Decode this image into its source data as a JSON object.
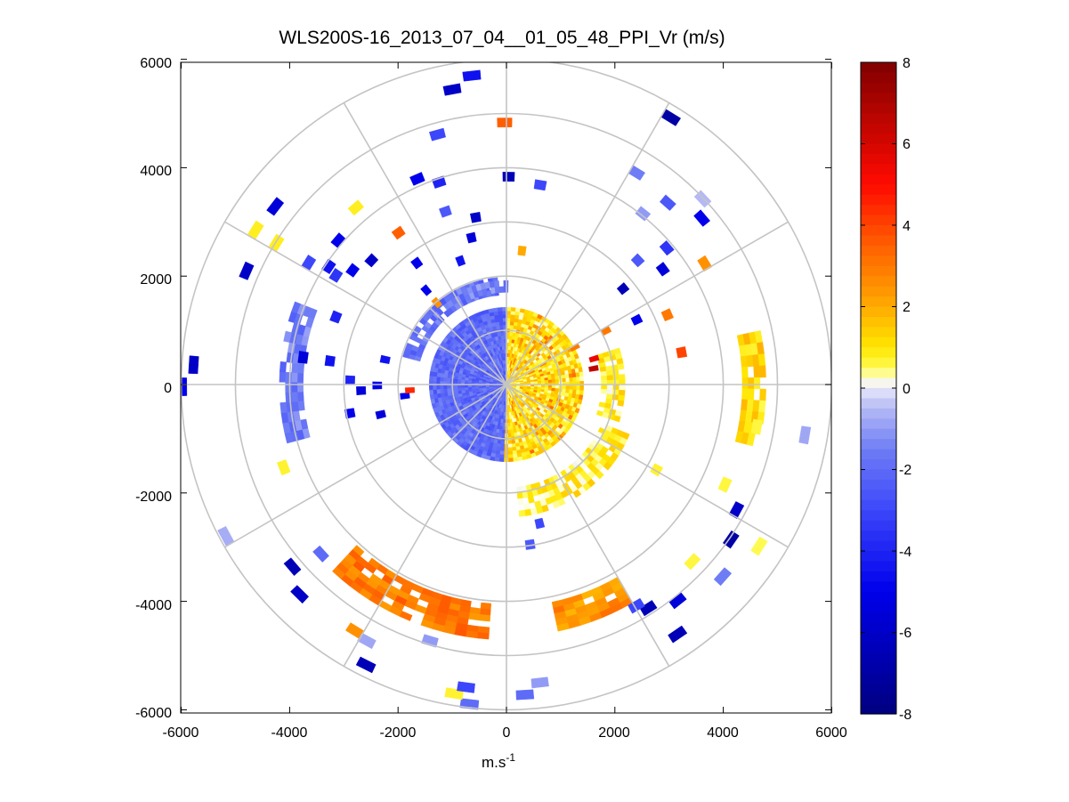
{
  "chart_data": {
    "type": "polar-ppi-scan",
    "title": "WLS200S-16_2013_07_04__01_05_48_PPI_Vr (m/s)",
    "xlabel": "m.s",
    "xlabel_superscript": "-1",
    "ylabel": "",
    "xlim": [
      -6000,
      6000
    ],
    "ylim": [
      -6000,
      6000
    ],
    "x_ticks": [
      "-6000",
      "-4000",
      "-2000",
      "0",
      "2000",
      "4000",
      "6000"
    ],
    "y_ticks": [
      "6000",
      "4000",
      "2000",
      "0",
      "-2000",
      "-4000",
      "-6000"
    ],
    "x_tick_values": [
      -6000,
      -4000,
      -2000,
      0,
      2000,
      4000,
      6000
    ],
    "y_tick_values": [
      6000,
      4000,
      2000,
      0,
      -2000,
      -4000,
      -6000
    ],
    "polar_grid": {
      "ring_radii_m": [
        1000,
        2000,
        3000,
        4000,
        5000,
        6000
      ],
      "spoke_angles_deg": [
        0,
        30,
        60,
        90,
        120,
        150,
        180,
        210,
        240,
        270,
        300,
        330
      ],
      "inner_spokes_deg": [
        45,
        135,
        225,
        315
      ]
    },
    "colorbar": {
      "label": "Vr (m/s)",
      "range": [
        -8,
        8
      ],
      "ticks": [
        "8",
        "6",
        "4",
        "2",
        "0",
        "-2",
        "-4",
        "-6",
        "-8"
      ],
      "tick_values": [
        8,
        6,
        4,
        2,
        0,
        -2,
        -4,
        -6,
        -8
      ],
      "colormap": "blue-white-red (dark navy at -8, white near 0, yellow/orange/red to dark red at 8)"
    },
    "near_range_disk": {
      "radius_m": 1400,
      "west_half_velocity_ms": -2,
      "east_half_velocity_ms": 1
    },
    "regions": [
      {
        "name": "south arc",
        "range_m": [
          4050,
          4650
        ],
        "azimuth_deg": [
          184,
          222
        ],
        "velocity_ms": 3.0
      },
      {
        "name": "south-southeast arc",
        "range_m": [
          4100,
          4550
        ],
        "azimuth_deg": [
          150,
          166
        ],
        "velocity_ms": 2.5
      },
      {
        "name": "east arc",
        "range_m": [
          4350,
          4750
        ],
        "azimuth_deg": [
          78,
          102
        ],
        "velocity_ms": 1.2
      },
      {
        "name": "west arc",
        "range_m": [
          3750,
          4150
        ],
        "azimuth_deg": [
          255,
          290
        ],
        "velocity_ms": -1.6
      },
      {
        "name": "southeast ring",
        "range_m": [
          1900,
          2350
        ],
        "azimuth_deg": [
          112,
          172
        ],
        "velocity_ms": 0.8
      },
      {
        "name": "east ring",
        "range_m": [
          1750,
          2150
        ],
        "azimuth_deg": [
          72,
          108
        ],
        "velocity_ms": 0.8
      },
      {
        "name": "northwest ring",
        "range_m": [
          1650,
          1950
        ],
        "azimuth_deg": [
          285,
          355
        ],
        "velocity_ms": -1.8
      },
      {
        "name": "north ring",
        "range_m": [
          1700,
          1900
        ],
        "azimuth_deg": [
          335,
          360
        ],
        "velocity_ms": -1.4
      }
    ],
    "sparse_scatter_ms": [
      {
        "range_m": 5650,
        "azimuth_deg": 352,
        "velocity_ms": -4.5
      },
      {
        "range_m": 5450,
        "azimuth_deg": 348,
        "velocity_ms": -6.0
      },
      {
        "range_m": 4700,
        "azimuth_deg": 343,
        "velocity_ms": -3.0
      },
      {
        "range_m": 4750,
        "azimuth_deg": 358,
        "velocity_ms": 3.5
      },
      {
        "range_m": 4050,
        "azimuth_deg": 335,
        "velocity_ms": -5.0
      },
      {
        "range_m": 3850,
        "azimuth_deg": 340,
        "velocity_ms": -4.0
      },
      {
        "range_m": 3750,
        "azimuth_deg": 359,
        "velocity_ms": -6.5
      },
      {
        "range_m": 3650,
        "azimuth_deg": 8,
        "velocity_ms": -3.0
      },
      {
        "range_m": 3300,
        "azimuth_deg": 339,
        "velocity_ms": -2.5
      },
      {
        "range_m": 3050,
        "azimuth_deg": 348,
        "velocity_ms": -6.0
      },
      {
        "range_m": 2700,
        "azimuth_deg": 345,
        "velocity_ms": -5.5
      },
      {
        "range_m": 2350,
        "azimuth_deg": 338,
        "velocity_ms": -4.5
      },
      {
        "range_m": 2400,
        "azimuth_deg": 5,
        "velocity_ms": 2.0
      },
      {
        "range_m": 5700,
        "azimuth_deg": 30,
        "velocity_ms": -7.0
      },
      {
        "range_m": 4500,
        "azimuth_deg": 30,
        "velocity_ms": -1.5
      },
      {
        "range_m": 4400,
        "azimuth_deg": 40,
        "velocity_ms": -2.5
      },
      {
        "range_m": 4650,
        "azimuth_deg": 48,
        "velocity_ms": -5.0
      },
      {
        "range_m": 4200,
        "azimuth_deg": 57,
        "velocity_ms": 2.5
      },
      {
        "range_m": 3950,
        "azimuth_deg": 37,
        "velocity_ms": -1.0
      },
      {
        "range_m": 3800,
        "azimuth_deg": 48,
        "velocity_ms": -3.5
      },
      {
        "range_m": 3250,
        "azimuth_deg": 45,
        "velocity_ms": -2.5
      },
      {
        "range_m": 3500,
        "azimuth_deg": 52,
        "velocity_ms": -5.5
      },
      {
        "range_m": 3150,
        "azimuth_deg": 65,
        "velocity_ms": 3.0
      },
      {
        "range_m": 2600,
        "azimuth_deg": 62,
        "velocity_ms": -5.0
      },
      {
        "range_m": 3200,
        "azimuth_deg": 78,
        "velocity_ms": 4.0
      },
      {
        "range_m": 4900,
        "azimuth_deg": 45,
        "velocity_ms": -0.5
      },
      {
        "range_m": 5500,
        "azimuth_deg": 98,
        "velocity_ms": -0.8
      },
      {
        "range_m": 4600,
        "azimuth_deg": 98,
        "velocity_ms": 0.6
      },
      {
        "range_m": 4350,
        "azimuth_deg": 113,
        "velocity_ms": 0.6
      },
      {
        "range_m": 4750,
        "azimuth_deg": 117,
        "velocity_ms": -6.0
      },
      {
        "range_m": 4950,
        "azimuth_deg": 123,
        "velocity_ms": -7.0
      },
      {
        "range_m": 5450,
        "azimuth_deg": 121,
        "velocity_ms": 0.5
      },
      {
        "range_m": 5250,
        "azimuth_deg": 130,
        "velocity_ms": -1.5
      },
      {
        "range_m": 4650,
        "azimuth_deg": 132,
        "velocity_ms": 0.6
      },
      {
        "range_m": 5000,
        "azimuth_deg": 140,
        "velocity_ms": -5.5
      },
      {
        "range_m": 4800,
        "azimuth_deg": 146,
        "velocity_ms": -6.5
      },
      {
        "range_m": 5500,
        "azimuth_deg": 144,
        "velocity_ms": -6.5
      },
      {
        "range_m": 4650,
        "azimuth_deg": 148,
        "velocity_ms": -3.0
      },
      {
        "range_m": 3100,
        "azimuth_deg": 118,
        "velocity_ms": 0.7
      },
      {
        "range_m": 2550,
        "azimuth_deg": 165,
        "velocity_ms": -3.0
      },
      {
        "range_m": 2900,
        "azimuth_deg": 170,
        "velocity_ms": -2.5
      },
      {
        "range_m": 5650,
        "azimuth_deg": 175,
        "velocity_ms": -2.0
      },
      {
        "range_m": 5850,
        "azimuth_deg": 185,
        "velocity_ms": -2.0
      },
      {
        "range_m": 5700,
        "azimuth_deg": 188,
        "velocity_ms": 0.7
      },
      {
        "range_m": 5450,
        "azimuth_deg": 172,
        "velocity_ms": -1.0
      },
      {
        "range_m": 5550,
        "azimuth_deg": 186,
        "velocity_ms": -3.0
      },
      {
        "range_m": 4850,
        "azimuth_deg": 195,
        "velocity_ms": -1.0
      },
      {
        "range_m": 5250,
        "azimuth_deg": 210,
        "velocity_ms": 2.5
      },
      {
        "range_m": 5300,
        "azimuth_deg": 207,
        "velocity_ms": -0.8
      },
      {
        "range_m": 5700,
        "azimuth_deg": 205,
        "velocity_ms": -6.5
      },
      {
        "range_m": 5100,
        "azimuth_deg": 228,
        "velocity_ms": -6.5
      },
      {
        "range_m": 5350,
        "azimuth_deg": 223,
        "velocity_ms": -6.0
      },
      {
        "range_m": 4550,
        "azimuth_deg": 226,
        "velocity_ms": -2.0
      },
      {
        "range_m": 5800,
        "azimuth_deg": 240,
        "velocity_ms": -0.7
      },
      {
        "range_m": 4300,
        "azimuth_deg": 248,
        "velocity_ms": 0.7
      },
      {
        "range_m": 5900,
        "azimuth_deg": 268,
        "velocity_ms": -5.0
      },
      {
        "range_m": 5700,
        "azimuth_deg": 272,
        "velocity_ms": -6.0
      },
      {
        "range_m": 3700,
        "azimuth_deg": 276,
        "velocity_ms": -5.5
      },
      {
        "range_m": 3200,
        "azimuth_deg": 276,
        "velocity_ms": -4.5
      },
      {
        "range_m": 2800,
        "azimuth_deg": 270,
        "velocity_ms": -4.0
      },
      {
        "range_m": 2850,
        "azimuth_deg": 258,
        "velocity_ms": -5.0
      },
      {
        "range_m": 2600,
        "azimuth_deg": 266,
        "velocity_ms": -5.5
      },
      {
        "range_m": 2300,
        "azimuth_deg": 268,
        "velocity_ms": -5.0
      },
      {
        "range_m": 5150,
        "azimuth_deg": 292,
        "velocity_ms": -6.0
      },
      {
        "range_m": 5350,
        "azimuth_deg": 300,
        "velocity_ms": 0.8
      },
      {
        "range_m": 4900,
        "azimuth_deg": 300,
        "velocity_ms": 0.8
      },
      {
        "range_m": 5300,
        "azimuth_deg": 306,
        "velocity_ms": -5.5
      },
      {
        "range_m": 4200,
        "azimuth_deg": 300,
        "velocity_ms": -3.0
      },
      {
        "range_m": 3850,
        "azimuth_deg": 302,
        "velocity_ms": -4.5
      },
      {
        "range_m": 3650,
        "azimuth_deg": 301,
        "velocity_ms": -3.5
      },
      {
        "range_m": 3300,
        "azimuth_deg": 290,
        "velocity_ms": -4.0
      },
      {
        "range_m": 3450,
        "azimuth_deg": 305,
        "velocity_ms": -5.0
      },
      {
        "range_m": 4000,
        "azimuth_deg": 309,
        "velocity_ms": -5.0
      },
      {
        "range_m": 3350,
        "azimuth_deg": 323,
        "velocity_ms": 3.5
      },
      {
        "range_m": 3300,
        "azimuth_deg": 311,
        "velocity_ms": -6.0
      },
      {
        "range_m": 2700,
        "azimuth_deg": 322,
        "velocity_ms": -5.0
      },
      {
        "range_m": 2200,
        "azimuth_deg": 318,
        "velocity_ms": -5.0
      },
      {
        "range_m": 1900,
        "azimuth_deg": 318,
        "velocity_ms": 2.5
      },
      {
        "range_m": 4200,
        "azimuth_deg": 318,
        "velocity_ms": 0.8
      },
      {
        "range_m": 1800,
        "azimuth_deg": 262,
        "velocity_ms": -5.0
      },
      {
        "range_m": 1700,
        "azimuth_deg": 265,
        "velocity_ms": 4.5
      },
      {
        "range_m": 2200,
        "azimuth_deg": 280,
        "velocity_ms": -4.5
      },
      {
        "range_m": 2300,
        "azimuth_deg": 255,
        "velocity_ms": -5.5
      },
      {
        "range_m": 1550,
        "azimuth_deg": 78,
        "velocity_ms": 6.5
      },
      {
        "range_m": 1600,
        "azimuth_deg": 72,
        "velocity_ms": 5.5
      },
      {
        "range_m": 1350,
        "azimuth_deg": 60,
        "velocity_ms": 3.0
      },
      {
        "range_m": 2000,
        "azimuth_deg": 60,
        "velocity_ms": 3.0
      },
      {
        "range_m": 2700,
        "azimuth_deg": 49,
        "velocity_ms": -6.5
      }
    ]
  }
}
